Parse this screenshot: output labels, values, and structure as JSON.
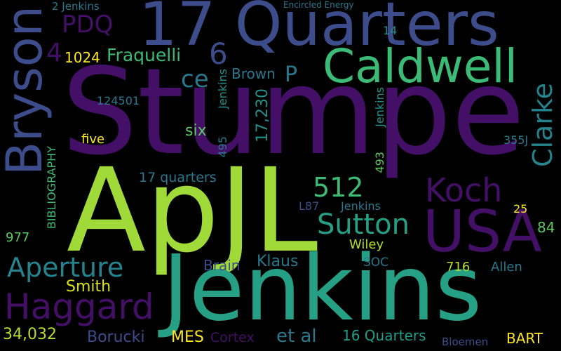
{
  "words": [
    {
      "text": "Stumpe",
      "color": "#440f66"
    },
    {
      "text": "ApJL",
      "color": "#a0da39"
    },
    {
      "text": "Jenkins",
      "color": "#25a085"
    },
    {
      "text": "17 Quarters",
      "color": "#3d4c8a"
    },
    {
      "text": "Caldwell",
      "color": "#3bbb75"
    },
    {
      "text": "USA",
      "color": "#440f66"
    },
    {
      "text": "Haggard",
      "color": "#440f66"
    },
    {
      "text": "Bryson",
      "color": "#3d4c8a"
    },
    {
      "text": "Koch",
      "color": "#440f66"
    },
    {
      "text": "Sutton",
      "color": "#25a085"
    },
    {
      "text": "Aperture",
      "color": "#25838e"
    },
    {
      "text": "512",
      "color": "#3bbb75"
    },
    {
      "text": "Clarke",
      "color": "#25838e"
    },
    {
      "text": "6",
      "color": "#3d4c8a"
    },
    {
      "text": "PDQ",
      "color": "#440f66"
    },
    {
      "text": "4",
      "color": "#440f66"
    },
    {
      "text": "ce",
      "color": "#2a788e"
    },
    {
      "text": "P",
      "color": "#2a788e"
    },
    {
      "text": "Fraquelli",
      "color": "#3bbb75"
    },
    {
      "text": "1024",
      "color": "#fde725"
    },
    {
      "text": "Brown",
      "color": "#2a788e"
    },
    {
      "text": "17,230",
      "color": "#21918c"
    },
    {
      "text": "six",
      "color": "#5ec962"
    },
    {
      "text": "five",
      "color": "#fde725"
    },
    {
      "text": "Smith",
      "color": "#d8e219"
    },
    {
      "text": "34,032",
      "color": "#b5de2b"
    },
    {
      "text": "Borucki",
      "color": "#3d4c8a"
    },
    {
      "text": "MES",
      "color": "#fde725"
    },
    {
      "text": "Cortex",
      "color": "#440f66"
    },
    {
      "text": "et al",
      "color": "#2a788e"
    },
    {
      "text": "16 Quarters",
      "color": "#1f9e89"
    },
    {
      "text": "BART",
      "color": "#fde725"
    },
    {
      "text": "Bloemen",
      "color": "#3d4c8a"
    },
    {
      "text": "Brain",
      "color": "#3d4c8a"
    },
    {
      "text": "Klaus",
      "color": "#2a788e"
    },
    {
      "text": "17 quarters",
      "color": "#2a788e"
    },
    {
      "text": "Wiley",
      "color": "#b5de2b"
    },
    {
      "text": "SOC",
      "color": "#2a788e"
    },
    {
      "text": "716",
      "color": "#b5de2b"
    },
    {
      "text": "Allen",
      "color": "#2a788e"
    },
    {
      "text": "84",
      "color": "#5ec962"
    },
    {
      "text": "25",
      "color": "#fde725"
    },
    {
      "text": "355J",
      "color": "#2a788e"
    },
    {
      "text": "L87",
      "color": "#3d4c8a"
    },
    {
      "text": "Jenkins",
      "color": "#2a788e"
    },
    {
      "text": "493",
      "color": "#5ec962"
    },
    {
      "text": "Jenkins",
      "color": "#21918c"
    },
    {
      "text": "495",
      "color": "#2a788e"
    },
    {
      "text": "Jenkins",
      "color": "#21918c"
    },
    {
      "text": "124501",
      "color": "#2a788e"
    },
    {
      "text": "977",
      "color": "#5ec962"
    },
    {
      "text": "BIBLIOGRAPHY",
      "color": "#3bbb75"
    },
    {
      "text": "14",
      "color": "#21918c"
    },
    {
      "text": "2 Jenkins",
      "color": "#2a788e"
    },
    {
      "text": "Encircled Energy",
      "color": "#2a788e"
    }
  ]
}
